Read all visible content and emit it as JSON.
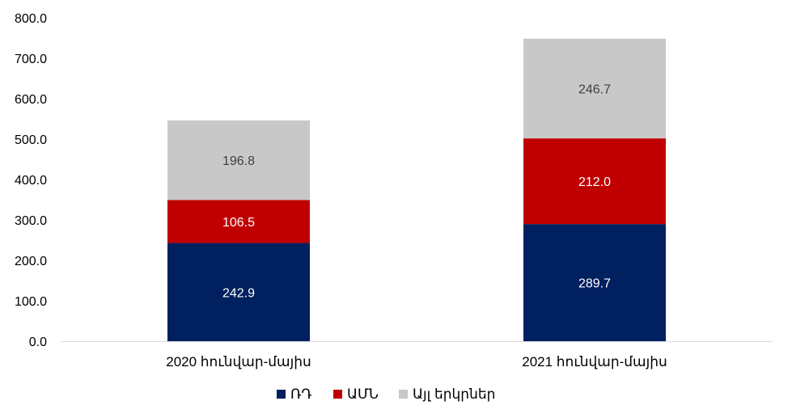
{
  "chart_data": {
    "type": "bar",
    "stacked": true,
    "categories": [
      "2020 հունվար-մայիս",
      "2021 հունվար-մայիս"
    ],
    "series": [
      {
        "name": "ՌԴ",
        "values": [
          242.9,
          289.7
        ],
        "labels": [
          "242.9",
          "289.7"
        ],
        "color": "#002060",
        "label_color": "#ffffff"
      },
      {
        "name": "ԱՄՆ",
        "values": [
          106.5,
          212.0
        ],
        "labels": [
          "106.5",
          "212.0"
        ],
        "color": "#c00000",
        "label_color": "#ffffff"
      },
      {
        "name": "Այլ երկրներ",
        "values": [
          196.8,
          246.7
        ],
        "labels": [
          "196.8",
          "246.7"
        ],
        "color": "#c8c8c8",
        "label_color": "#404040"
      }
    ],
    "ylim": [
      0,
      800
    ],
    "yticks": [
      "0.0",
      "100.0",
      "200.0",
      "300.0",
      "400.0",
      "500.0",
      "600.0",
      "700.0",
      "800.0"
    ],
    "grid": false,
    "legend_position": "bottom"
  }
}
